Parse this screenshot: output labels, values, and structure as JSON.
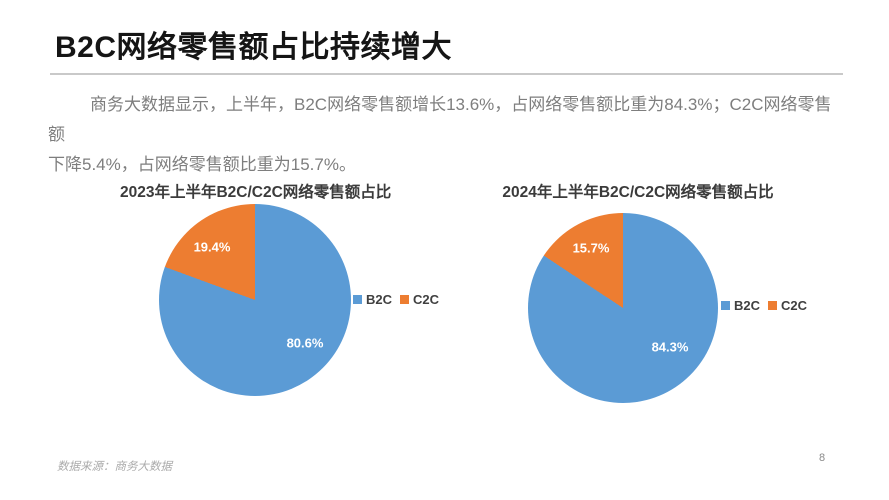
{
  "slide": {
    "title": "B2C网络零售额占比持续增大",
    "paragraph_lines": [
      "商务大数据显示，上半年，B2C网络零售额增长13.6%，占网络零售额比重为84.3%；C2C网络零售额",
      "下降5.4%，占网络零售额比重为15.7%。"
    ],
    "footer": {
      "source": "数据来源：商务大数据",
      "page_number": "8"
    }
  },
  "colors": {
    "b2c_blue": "#5B9BD5",
    "c2c_orange": "#ED7D31",
    "title_text": "#151515",
    "body_text": "#7E7E7E",
    "divider_gray": "#C9C9C9",
    "data_label": "#FFFFFF"
  },
  "chart_data": [
    {
      "type": "pie",
      "title": "2023年上半年B2C/C2C网络零售额占比",
      "categories": [
        "B2C",
        "C2C"
      ],
      "values": [
        80.6,
        19.4
      ],
      "labels": [
        "80.6%",
        "19.4%"
      ],
      "colors": [
        "#5B9BD5",
        "#ED7D31"
      ],
      "unit": "%",
      "start_angle": "12-oclock",
      "direction": "clockwise",
      "legend_position": "right-middle",
      "data_label_color": "#FFFFFF"
    },
    {
      "type": "pie",
      "title": "2024年上半年B2C/C2C网络零售额占比",
      "categories": [
        "B2C",
        "C2C"
      ],
      "values": [
        84.3,
        15.7
      ],
      "labels": [
        "84.3%",
        "15.7%"
      ],
      "colors": [
        "#5B9BD5",
        "#ED7D31"
      ],
      "unit": "%",
      "start_angle": "12-oclock",
      "direction": "clockwise",
      "legend_position": "right-middle",
      "data_label_color": "#FFFFFF"
    }
  ]
}
